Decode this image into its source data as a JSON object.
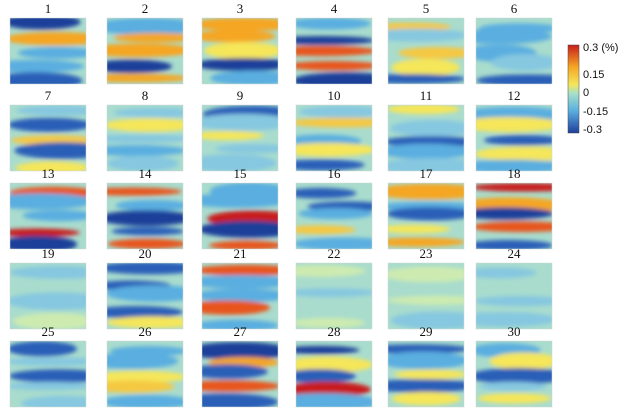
{
  "panels": [
    {
      "label": "1"
    },
    {
      "label": "2"
    },
    {
      "label": "3"
    },
    {
      "label": "4"
    },
    {
      "label": "5"
    },
    {
      "label": "6"
    },
    {
      "label": "7"
    },
    {
      "label": "8"
    },
    {
      "label": "9"
    },
    {
      "label": "10"
    },
    {
      "label": "11"
    },
    {
      "label": "12"
    },
    {
      "label": "13"
    },
    {
      "label": "14"
    },
    {
      "label": "15"
    },
    {
      "label": "16"
    },
    {
      "label": "17"
    },
    {
      "label": "18"
    },
    {
      "label": "19"
    },
    {
      "label": "20"
    },
    {
      "label": "21"
    },
    {
      "label": "22"
    },
    {
      "label": "23"
    },
    {
      "label": "24"
    },
    {
      "label": "25"
    },
    {
      "label": "26"
    },
    {
      "label": "27"
    },
    {
      "label": "28"
    },
    {
      "label": "29"
    },
    {
      "label": "30"
    }
  ],
  "colorbar": {
    "ticks": [
      "0.3 (%)",
      "0.15",
      "0",
      "-0.15",
      "-0.3"
    ]
  }
}
